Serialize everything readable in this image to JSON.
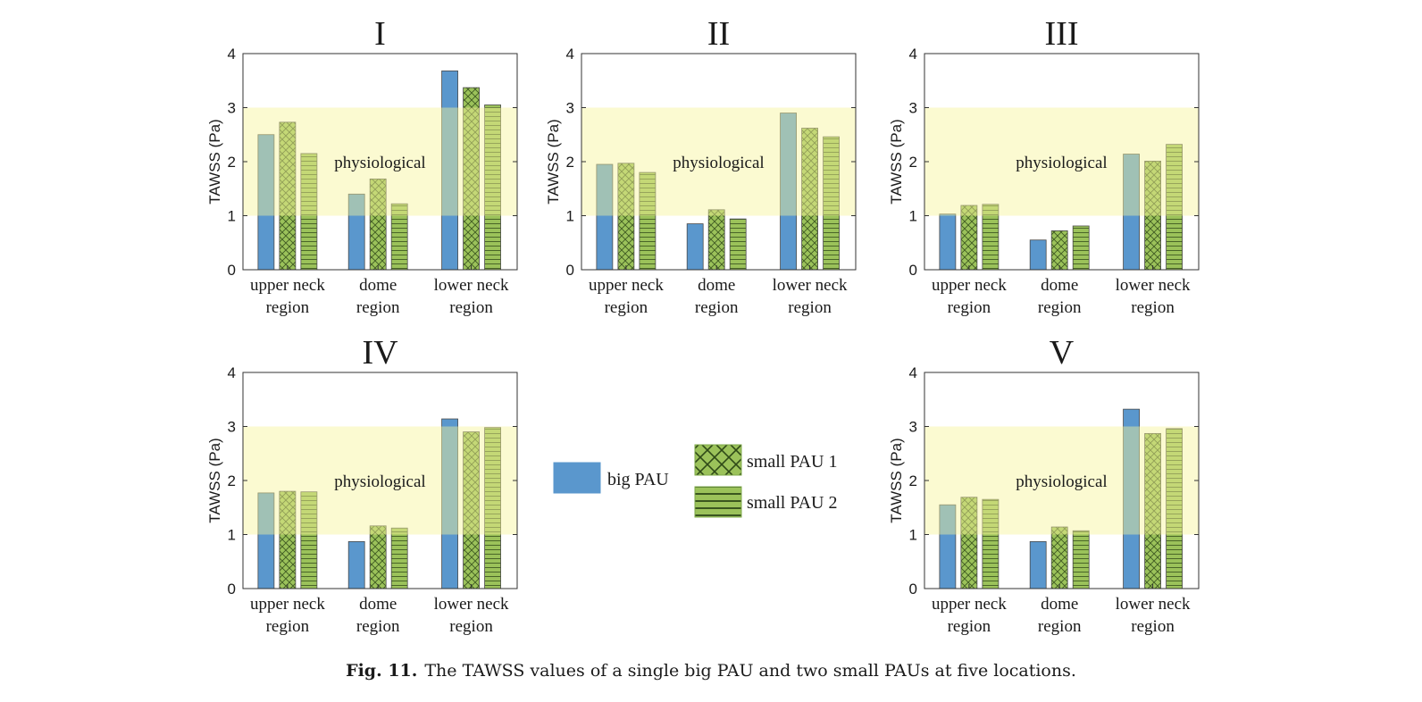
{
  "caption": {
    "label": "Fig. 11.",
    "text": "The TAWSS values of a single big PAU and two small PAUs at five locations."
  },
  "legend": {
    "items": [
      {
        "label": "big PAU",
        "color": "#5a97cd",
        "pattern": "solid"
      },
      {
        "label": "small PAU 1",
        "color": "#9bc25a",
        "pattern": "crosshatch"
      },
      {
        "label": "small PAU 2",
        "color": "#9bc25a",
        "pattern": "horizontal"
      }
    ]
  },
  "colors": {
    "band": "#fdfcc5",
    "big": "#5a97cd",
    "small": "#9bc25a"
  },
  "chart_data": [
    {
      "type": "bar",
      "title": "I",
      "ylabel": "TAWSS (Pa)",
      "ylim": [
        0,
        4
      ],
      "yticks": [
        "0",
        "1",
        "2",
        "3",
        "4"
      ],
      "band": {
        "range": [
          1,
          3
        ],
        "label": "physiological"
      },
      "categories": [
        [
          "upper neck",
          "region"
        ],
        [
          "dome",
          "region"
        ],
        [
          "lower neck",
          "region"
        ]
      ],
      "series": [
        {
          "name": "big PAU",
          "values": [
            2.5,
            1.4,
            3.68
          ]
        },
        {
          "name": "small PAU 1",
          "values": [
            2.73,
            1.68,
            3.37
          ]
        },
        {
          "name": "small PAU 2",
          "values": [
            2.15,
            1.22,
            3.05
          ]
        }
      ]
    },
    {
      "type": "bar",
      "title": "II",
      "ylabel": "TAWSS (Pa)",
      "ylim": [
        0,
        4
      ],
      "yticks": [
        "0",
        "1",
        "2",
        "3",
        "4"
      ],
      "band": {
        "range": [
          1,
          3
        ],
        "label": "physiological"
      },
      "categories": [
        [
          "upper neck",
          "region"
        ],
        [
          "dome",
          "region"
        ],
        [
          "lower neck",
          "region"
        ]
      ],
      "series": [
        {
          "name": "big PAU",
          "values": [
            1.95,
            0.85,
            2.9
          ]
        },
        {
          "name": "small PAU 1",
          "values": [
            1.97,
            1.11,
            2.62
          ]
        },
        {
          "name": "small PAU 2",
          "values": [
            1.8,
            0.94,
            2.46
          ]
        }
      ]
    },
    {
      "type": "bar",
      "title": "III",
      "ylabel": "TAWSS (Pa)",
      "ylim": [
        0,
        4
      ],
      "yticks": [
        "0",
        "1",
        "2",
        "3",
        "4"
      ],
      "band": {
        "range": [
          1,
          3
        ],
        "label": "physiological"
      },
      "categories": [
        [
          "upper neck",
          "region"
        ],
        [
          "dome",
          "region"
        ],
        [
          "lower neck",
          "region"
        ]
      ],
      "series": [
        {
          "name": "big PAU",
          "values": [
            1.03,
            0.55,
            2.14
          ]
        },
        {
          "name": "small PAU 1",
          "values": [
            1.19,
            0.72,
            2.01
          ]
        },
        {
          "name": "small PAU 2",
          "values": [
            1.21,
            0.81,
            2.32
          ]
        }
      ]
    },
    {
      "type": "bar",
      "title": "IV",
      "ylabel": "TAWSS (Pa)",
      "ylim": [
        0,
        4
      ],
      "yticks": [
        "0",
        "1",
        "2",
        "3",
        "4"
      ],
      "band": {
        "range": [
          1,
          3
        ],
        "label": "physiological"
      },
      "categories": [
        [
          "upper neck",
          "region"
        ],
        [
          "dome",
          "region"
        ],
        [
          "lower neck",
          "region"
        ]
      ],
      "series": [
        {
          "name": "big PAU",
          "values": [
            1.77,
            0.87,
            3.14
          ]
        },
        {
          "name": "small PAU 1",
          "values": [
            1.8,
            1.16,
            2.9
          ]
        },
        {
          "name": "small PAU 2",
          "values": [
            1.79,
            1.12,
            2.98
          ]
        }
      ]
    },
    {
      "type": "bar",
      "title": "V",
      "ylabel": "TAWSS (Pa)",
      "ylim": [
        0,
        4
      ],
      "yticks": [
        "0",
        "1",
        "2",
        "3",
        "4"
      ],
      "band": {
        "range": [
          1,
          3
        ],
        "label": "physiological"
      },
      "categories": [
        [
          "upper neck",
          "region"
        ],
        [
          "dome",
          "region"
        ],
        [
          "lower neck",
          "region"
        ]
      ],
      "series": [
        {
          "name": "big PAU",
          "values": [
            1.55,
            0.87,
            3.32
          ]
        },
        {
          "name": "small PAU 1",
          "values": [
            1.69,
            1.14,
            2.87
          ]
        },
        {
          "name": "small PAU 2",
          "values": [
            1.65,
            1.07,
            2.96
          ]
        }
      ]
    }
  ]
}
